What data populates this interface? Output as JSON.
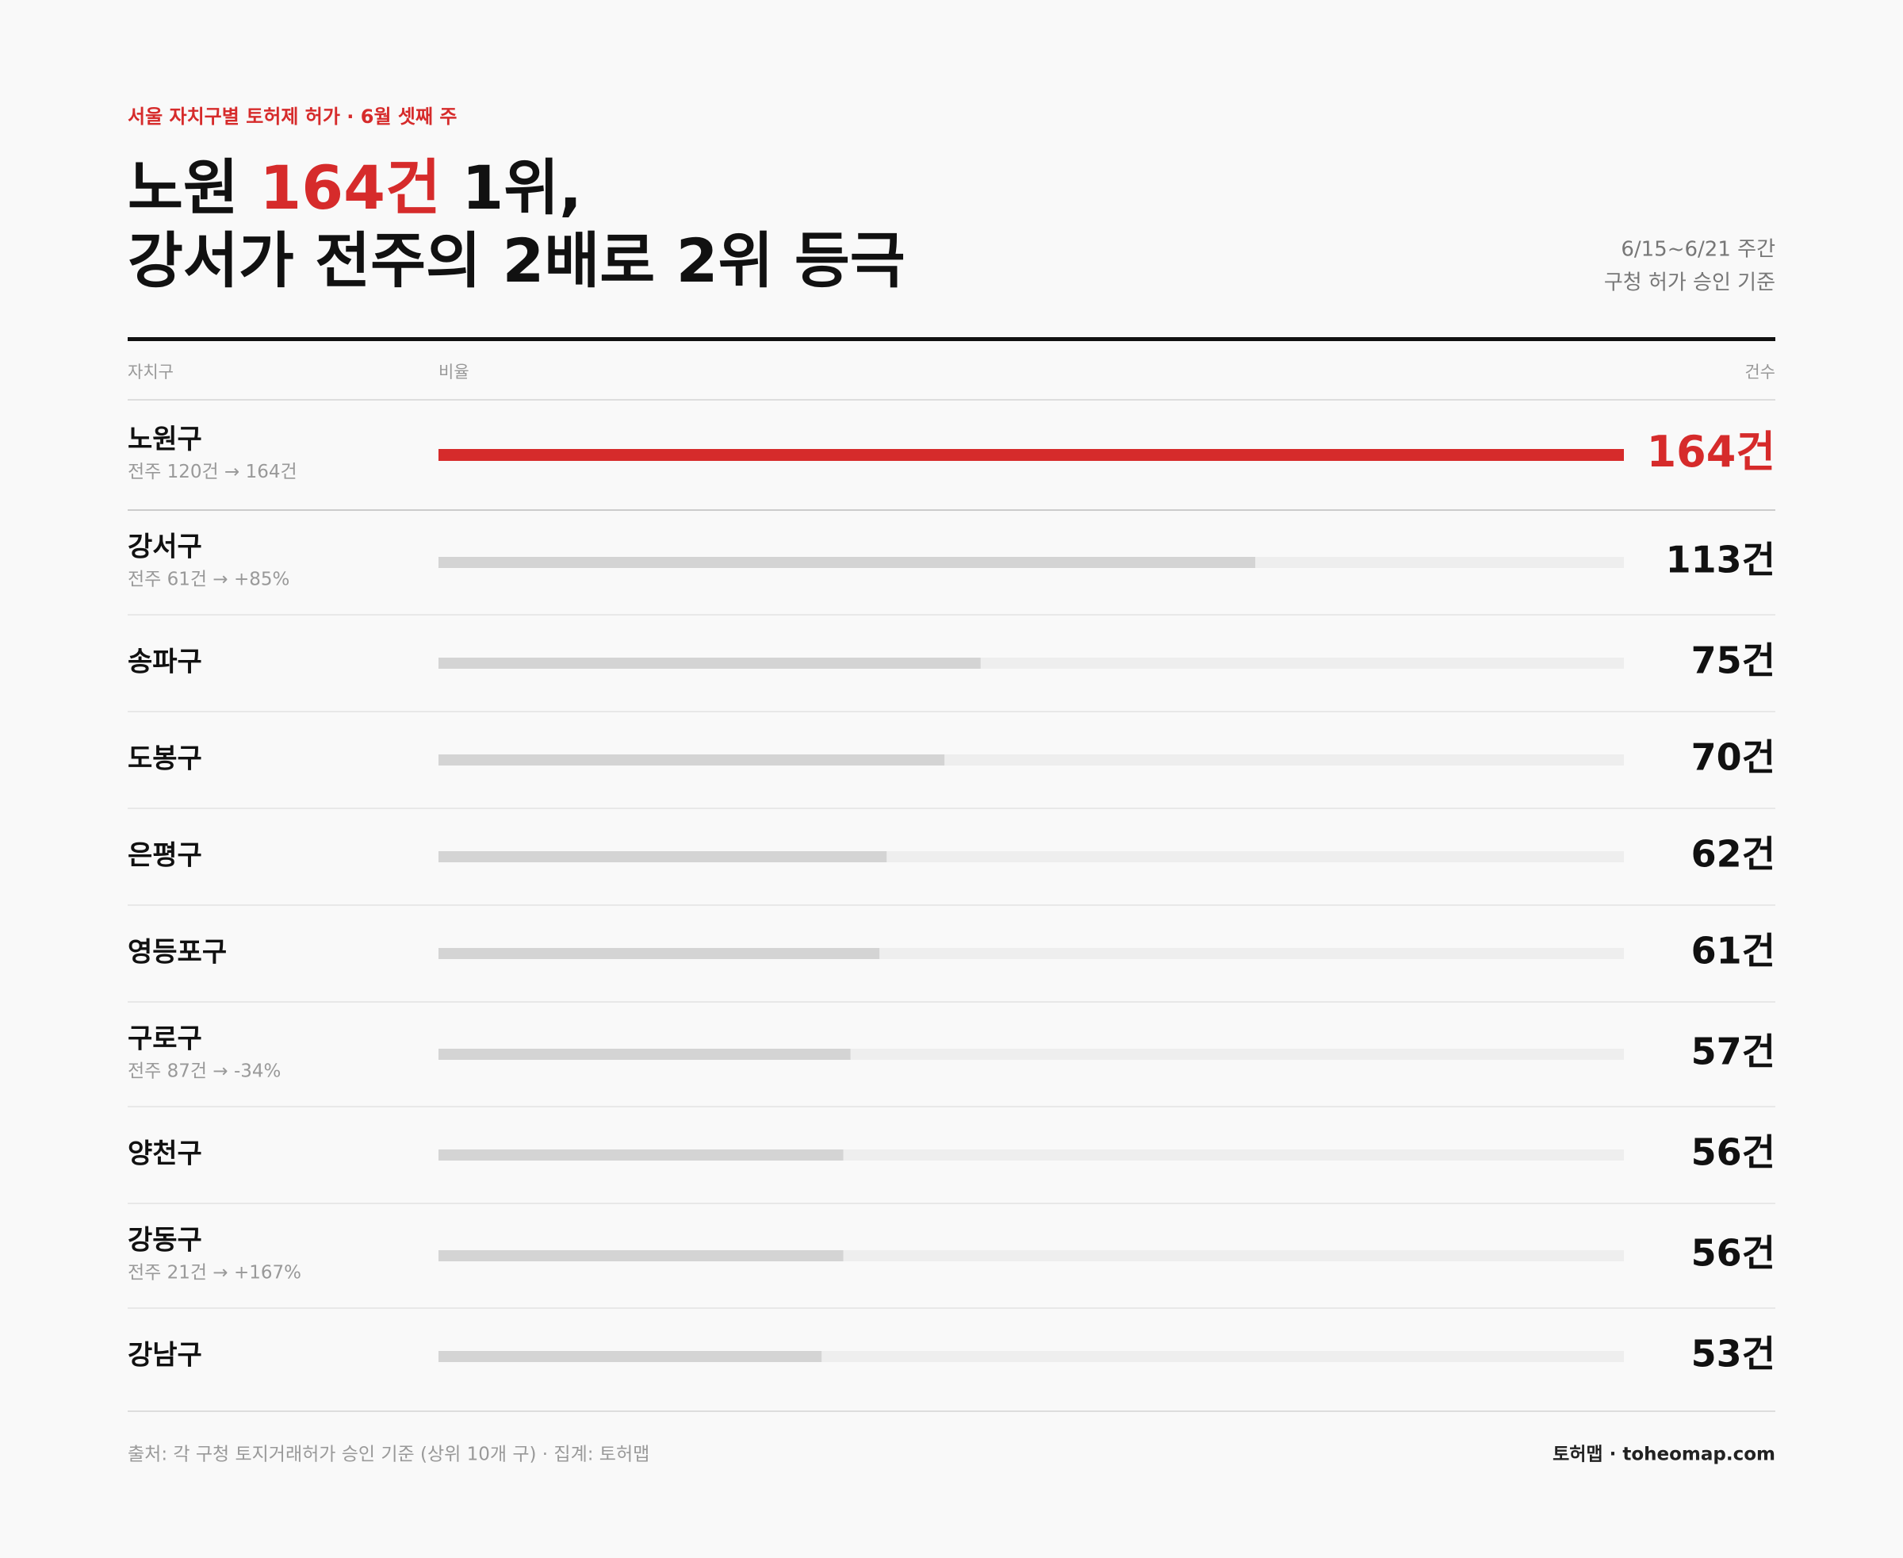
{
  "chart_data": {
    "type": "bar",
    "eyebrow": "서울 자치구별 토허제 허가 · 6월 셋째 주",
    "title": {
      "before": "노원 ",
      "highlight": "164건",
      "after": " 1위,",
      "line2": "강서가 전주의 2배로 2위 등극"
    },
    "period": "6/15~6/21 주간",
    "basis": "구청 허가 승인 기준",
    "headers": {
      "name": "자치구",
      "bar": "비율",
      "value": "건수"
    },
    "categories": [
      "노원구",
      "강서구",
      "송파구",
      "도봉구",
      "은평구",
      "영등포구",
      "구로구",
      "양천구",
      "강동구",
      "강남구"
    ],
    "notes": [
      "전주 120건 → 164건",
      "전주 61건 → +85%",
      null,
      null,
      null,
      null,
      "전주 87건 → -34%",
      null,
      "전주 21건 → +167%",
      null
    ],
    "values": [
      164,
      113,
      75,
      70,
      62,
      61,
      57,
      56,
      56,
      53
    ],
    "value_labels": [
      "164건",
      "113건",
      "75건",
      "70건",
      "62건",
      "61건",
      "57건",
      "56건",
      "56건",
      "53건"
    ],
    "xlim": [
      0,
      164
    ],
    "color": "#d4d4d4",
    "highlight_color": "#d62b2b",
    "track_color": "#eeeeee",
    "footer": "출처: 각 구청 토지거래허가 승인 기준 (상위 10개 구) · 집계: 토허맵",
    "brand": "토허맵 · toheomap.com"
  }
}
